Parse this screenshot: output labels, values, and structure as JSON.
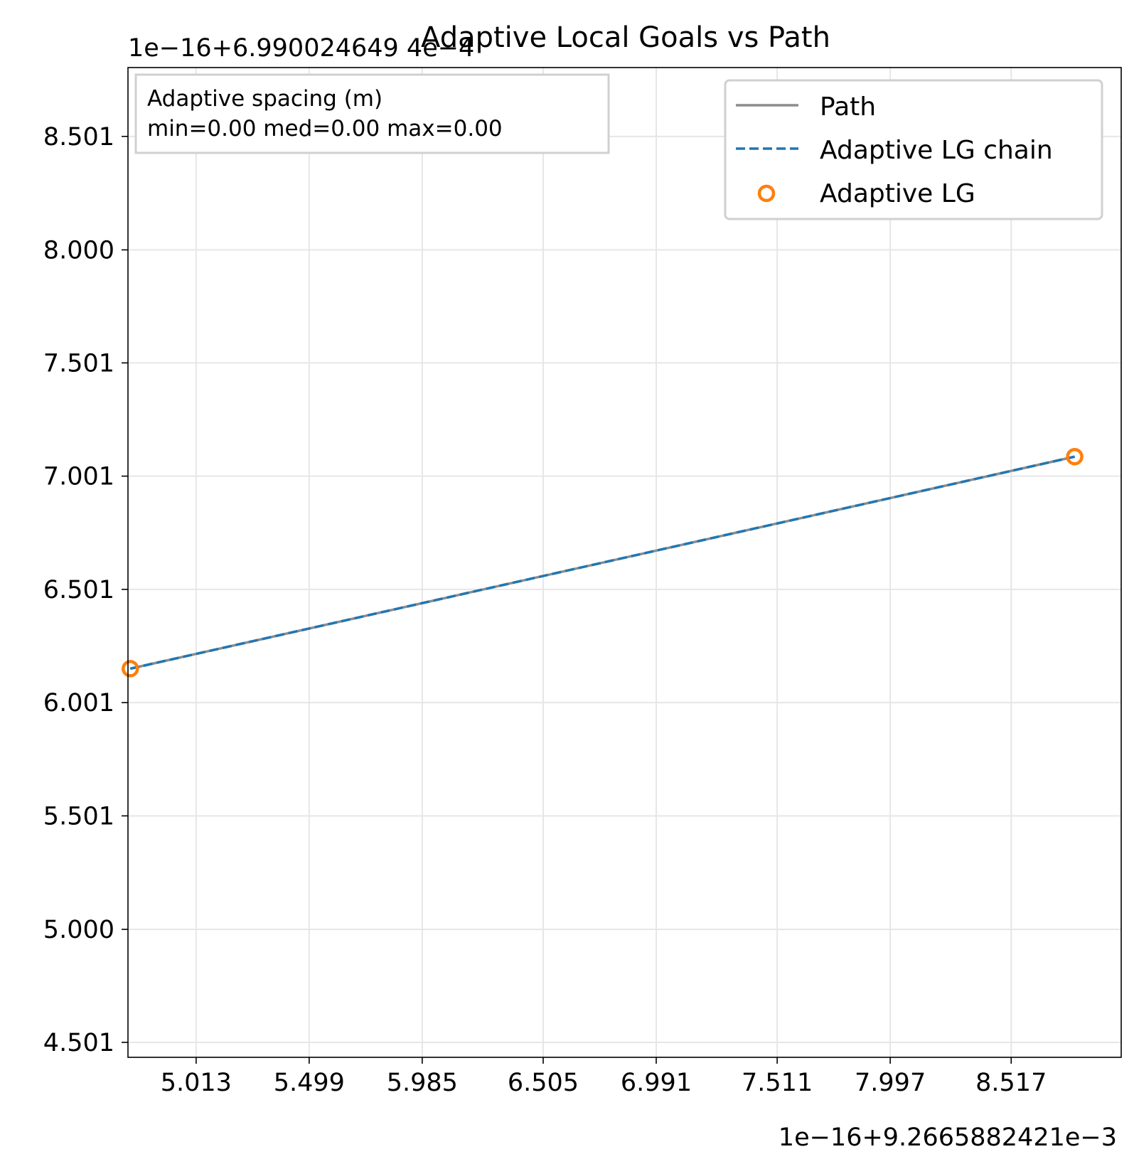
{
  "chart_data": {
    "type": "line",
    "title": "Adaptive Local Goals vs Path",
    "xlabel": "",
    "ylabel": "",
    "x_offset_label": "1e−16+9.2665882421e−3",
    "y_offset_label": "1e−16+6.990024649 4e−4",
    "xlim": [
      4.72,
      8.99
    ],
    "ylim": [
      4.435,
      8.805
    ],
    "x_ticks": [
      5.013,
      5.499,
      5.985,
      6.505,
      6.991,
      7.511,
      7.997,
      8.517
    ],
    "x_tick_labels": [
      "5.013",
      "5.499",
      "5.985",
      "6.505",
      "6.991",
      "7.511",
      "7.997",
      "8.517"
    ],
    "y_ticks": [
      4.501,
      5.0,
      5.501,
      6.001,
      6.501,
      7.001,
      7.501,
      8.0,
      8.501
    ],
    "y_tick_labels": [
      "4.501",
      "5.000",
      "5.501",
      "6.001",
      "6.501",
      "7.001",
      "7.501",
      "8.000",
      "8.501"
    ],
    "grid": true,
    "legend_position": "top-right",
    "series": [
      {
        "name": "Path",
        "style": "solid",
        "color": "#8c8c8c",
        "x": [
          4.73,
          8.79
        ],
        "y": [
          6.151,
          7.087
        ]
      },
      {
        "name": "Adaptive LG chain",
        "style": "dashed",
        "color": "#1f77b4",
        "x": [
          4.73,
          8.79
        ],
        "y": [
          6.151,
          7.087
        ]
      },
      {
        "name": "Adaptive LG",
        "style": "markers",
        "color": "#ff7f0e",
        "x": [
          4.73,
          8.79
        ],
        "y": [
          6.151,
          7.087
        ]
      }
    ],
    "annotation": {
      "position": "top-left",
      "line1": "Adaptive spacing (m)",
      "line2": "min=0.00  med=0.00  max=0.00"
    }
  }
}
